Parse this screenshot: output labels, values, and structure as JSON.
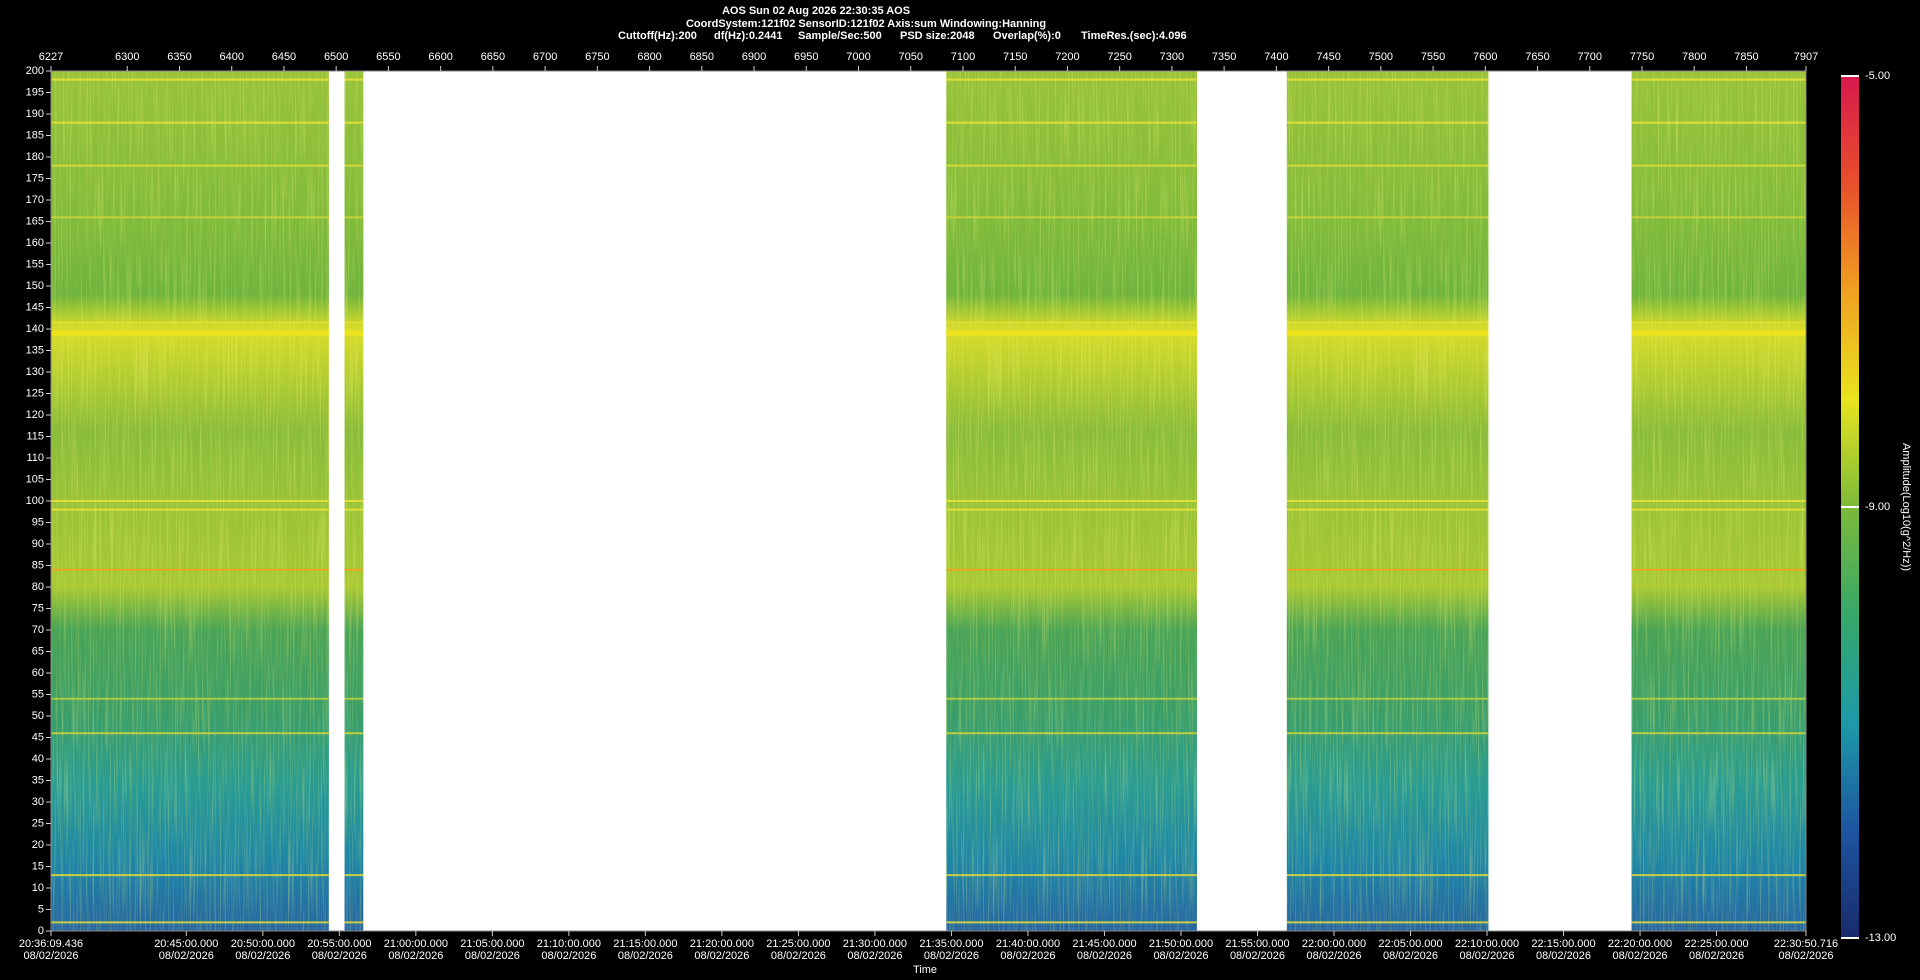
{
  "chart_data": {
    "type": "spectrogram",
    "title": "AOS  Sun 02 Aug 2026 22:30:35  AOS",
    "subtitle": "CoordSystem:121f02   SensorID:121f02   Axis:sum    Windowing:Hanning",
    "settings": [
      "Cuttoff(Hz):200",
      "df(Hz):0.2441",
      "Sample/Sec:500",
      "PSD size:2048",
      "Overlap(%):0",
      "TimeRes.(sec):4.096"
    ],
    "x_label": "Time",
    "colorbar_label": "Amplitude(Log10(g^2/Hz))",
    "x2lim": [
      6227,
      7907
    ],
    "x2ticks": [
      6227,
      6300,
      6350,
      6400,
      6450,
      6500,
      6550,
      6600,
      6650,
      6700,
      6750,
      6800,
      6850,
      6900,
      6950,
      7000,
      7050,
      7100,
      7150,
      7200,
      7250,
      7300,
      7350,
      7400,
      7450,
      7500,
      7550,
      7600,
      7650,
      7700,
      7750,
      7800,
      7850,
      7907
    ],
    "xlim": [
      74169.436,
      81050.716
    ],
    "xticks": [
      {
        "value": 74169.436,
        "label": "20:36:09.436",
        "date": "08/02/2026"
      },
      {
        "value": 74700,
        "label": "20:45:00.000",
        "date": "08/02/2026"
      },
      {
        "value": 75000,
        "label": "20:50:00.000",
        "date": "08/02/2026"
      },
      {
        "value": 75300,
        "label": "20:55:00.000",
        "date": "08/02/2026"
      },
      {
        "value": 75600,
        "label": "21:00:00.000",
        "date": "08/02/2026"
      },
      {
        "value": 75900,
        "label": "21:05:00.000",
        "date": "08/02/2026"
      },
      {
        "value": 76200,
        "label": "21:10:00.000",
        "date": "08/02/2026"
      },
      {
        "value": 76500,
        "label": "21:15:00.000",
        "date": "08/02/2026"
      },
      {
        "value": 76800,
        "label": "21:20:00.000",
        "date": "08/02/2026"
      },
      {
        "value": 77100,
        "label": "21:25:00.000",
        "date": "08/02/2026"
      },
      {
        "value": 77400,
        "label": "21:30:00.000",
        "date": "08/02/2026"
      },
      {
        "value": 77700,
        "label": "21:35:00.000",
        "date": "08/02/2026"
      },
      {
        "value": 78000,
        "label": "21:40:00.000",
        "date": "08/02/2026"
      },
      {
        "value": 78300,
        "label": "21:45:00.000",
        "date": "08/02/2026"
      },
      {
        "value": 78600,
        "label": "21:50:00.000",
        "date": "08/02/2026"
      },
      {
        "value": 78900,
        "label": "21:55:00.000",
        "date": "08/02/2026"
      },
      {
        "value": 79200,
        "label": "22:00:00.000",
        "date": "08/02/2026"
      },
      {
        "value": 79500,
        "label": "22:05:00.000",
        "date": "08/02/2026"
      },
      {
        "value": 79800,
        "label": "22:10:00.000",
        "date": "08/02/2026"
      },
      {
        "value": 80100,
        "label": "22:15:00.000",
        "date": "08/02/2026"
      },
      {
        "value": 80400,
        "label": "22:20:00.000",
        "date": "08/02/2026"
      },
      {
        "value": 80700,
        "label": "22:25:00.000",
        "date": "08/02/2026"
      },
      {
        "value": 81050.716,
        "label": "22:30:50.716",
        "date": "08/02/2026"
      }
    ],
    "ylim": [
      0,
      200
    ],
    "yticks": [
      0,
      5,
      10,
      15,
      20,
      25,
      30,
      35,
      40,
      45,
      50,
      55,
      60,
      65,
      70,
      75,
      80,
      85,
      90,
      95,
      100,
      105,
      110,
      115,
      120,
      125,
      130,
      135,
      140,
      145,
      150,
      155,
      160,
      165,
      170,
      175,
      180,
      185,
      190,
      195,
      200
    ],
    "segments": [
      [
        6227,
        6493
      ],
      [
        6508,
        6526
      ],
      [
        7084,
        7324
      ],
      [
        7410,
        7603
      ],
      [
        7740,
        7907
      ]
    ],
    "bands": [
      {
        "freq": 198,
        "color": "#e8e23a"
      },
      {
        "freq": 188,
        "color": "#e8e23a"
      },
      {
        "freq": 178,
        "color": "#d8dc3a"
      },
      {
        "freq": 166,
        "color": "#c8d43a"
      },
      {
        "freq": 141.5,
        "color": "#e4e030"
      },
      {
        "freq": 139,
        "color": "#f2e41c"
      },
      {
        "freq": 100,
        "color": "#e8e23a"
      },
      {
        "freq": 98,
        "color": "#e8e23a"
      },
      {
        "freq": 84,
        "color": "#f0a020"
      },
      {
        "freq": 54,
        "color": "#b8cf40"
      },
      {
        "freq": 46,
        "color": "#c8d43a"
      },
      {
        "freq": 13,
        "color": "#d8d83a"
      },
      {
        "freq": 2,
        "color": "#d8d83a"
      }
    ],
    "clim": [
      -13,
      -5
    ],
    "cticks": [
      {
        "value": -5,
        "label": "-5.00"
      },
      {
        "value": -9,
        "label": "-9.00"
      },
      {
        "value": -13,
        "label": "-13.00"
      }
    ],
    "colormap": [
      "#1a2a6c",
      "#1c55a0",
      "#1c9aa8",
      "#36a86a",
      "#7cba38",
      "#e8e41e",
      "#f0a020",
      "#e8502a",
      "#d8184e"
    ]
  }
}
